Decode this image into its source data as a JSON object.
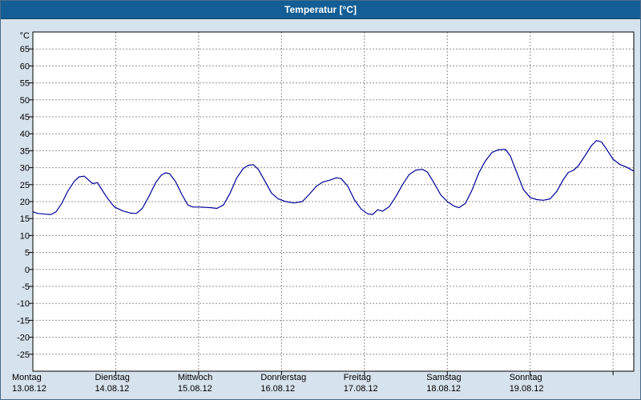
{
  "window": {
    "title": "Temperatur [°C]"
  },
  "chart_data": {
    "type": "line",
    "title": "Temperatur [°C]",
    "unit_label": "°C",
    "grid": true,
    "legend": "none",
    "ylim": [
      -30,
      70
    ],
    "y_ticks": [
      65,
      60,
      55,
      50,
      45,
      40,
      35,
      30,
      25,
      20,
      15,
      10,
      5,
      0,
      -5,
      -10,
      -15,
      -20,
      -25
    ],
    "xlim_days": [
      0,
      7.25
    ],
    "day_gridlines_t": [
      1,
      2,
      3,
      4,
      5,
      6,
      7
    ],
    "x_days": [
      {
        "name": "Montag",
        "date": "13.08.12",
        "t": 0
      },
      {
        "name": "Dienstag",
        "date": "14.08.12",
        "t": 1
      },
      {
        "name": "Mittwoch",
        "date": "15.08.12",
        "t": 2
      },
      {
        "name": "Donnerstag",
        "date": "16.08.12",
        "t": 3
      },
      {
        "name": "Freitag",
        "date": "17.08.12",
        "t": 4
      },
      {
        "name": "Samstag",
        "date": "18.08.12",
        "t": 5
      },
      {
        "name": "Sonntag",
        "date": "19.08.12",
        "t": 6
      }
    ],
    "colors": {
      "line": "#000099",
      "grid": "#909090",
      "plot_bg": "#ffffff",
      "frame": "#000000",
      "titlebar_bg": "#135e96",
      "page_bg": "#d6e2ec"
    },
    "series": [
      {
        "name": "Temperatur",
        "x_unit": "days_since_2012-08-13",
        "y_unit": "°C",
        "points": [
          [
            0.0,
            17.0
          ],
          [
            0.06,
            16.5
          ],
          [
            0.15,
            16.3
          ],
          [
            0.22,
            16.2
          ],
          [
            0.28,
            17.0
          ],
          [
            0.35,
            19.5
          ],
          [
            0.42,
            23.0
          ],
          [
            0.5,
            26.0
          ],
          [
            0.56,
            27.3
          ],
          [
            0.62,
            27.5
          ],
          [
            0.68,
            26.2
          ],
          [
            0.72,
            25.3
          ],
          [
            0.78,
            25.6
          ],
          [
            0.82,
            24.0
          ],
          [
            0.9,
            21.0
          ],
          [
            0.98,
            18.5
          ],
          [
            1.08,
            17.3
          ],
          [
            1.18,
            16.6
          ],
          [
            1.25,
            16.5
          ],
          [
            1.32,
            18.0
          ],
          [
            1.4,
            21.5
          ],
          [
            1.48,
            25.5
          ],
          [
            1.55,
            27.8
          ],
          [
            1.6,
            28.5
          ],
          [
            1.65,
            28.2
          ],
          [
            1.72,
            26.0
          ],
          [
            1.8,
            22.0
          ],
          [
            1.87,
            19.0
          ],
          [
            1.93,
            18.4
          ],
          [
            2.0,
            18.4
          ],
          [
            2.08,
            18.3
          ],
          [
            2.15,
            18.2
          ],
          [
            2.22,
            18.0
          ],
          [
            2.3,
            19.0
          ],
          [
            2.38,
            22.5
          ],
          [
            2.46,
            27.0
          ],
          [
            2.54,
            29.8
          ],
          [
            2.6,
            30.7
          ],
          [
            2.66,
            30.9
          ],
          [
            2.72,
            29.5
          ],
          [
            2.8,
            26.0
          ],
          [
            2.88,
            22.5
          ],
          [
            2.96,
            20.8
          ],
          [
            3.05,
            20.0
          ],
          [
            3.15,
            19.6
          ],
          [
            3.25,
            20.0
          ],
          [
            3.33,
            22.0
          ],
          [
            3.42,
            24.5
          ],
          [
            3.5,
            25.8
          ],
          [
            3.58,
            26.3
          ],
          [
            3.66,
            27.0
          ],
          [
            3.72,
            26.8
          ],
          [
            3.8,
            24.5
          ],
          [
            3.88,
            20.5
          ],
          [
            3.96,
            17.8
          ],
          [
            4.04,
            16.4
          ],
          [
            4.1,
            16.2
          ],
          [
            4.16,
            17.6
          ],
          [
            4.22,
            17.2
          ],
          [
            4.3,
            18.5
          ],
          [
            4.38,
            21.5
          ],
          [
            4.46,
            25.0
          ],
          [
            4.54,
            28.0
          ],
          [
            4.62,
            29.3
          ],
          [
            4.7,
            29.5
          ],
          [
            4.76,
            28.7
          ],
          [
            4.84,
            25.5
          ],
          [
            4.92,
            22.0
          ],
          [
            5.0,
            20.0
          ],
          [
            5.08,
            18.7
          ],
          [
            5.14,
            18.2
          ],
          [
            5.22,
            19.5
          ],
          [
            5.3,
            23.5
          ],
          [
            5.38,
            28.5
          ],
          [
            5.46,
            32.0
          ],
          [
            5.54,
            34.5
          ],
          [
            5.62,
            35.3
          ],
          [
            5.7,
            35.4
          ],
          [
            5.76,
            33.5
          ],
          [
            5.84,
            28.5
          ],
          [
            5.92,
            23.5
          ],
          [
            6.0,
            21.2
          ],
          [
            6.08,
            20.6
          ],
          [
            6.16,
            20.4
          ],
          [
            6.24,
            20.8
          ],
          [
            6.32,
            23.0
          ],
          [
            6.4,
            26.5
          ],
          [
            6.46,
            28.6
          ],
          [
            6.52,
            29.2
          ],
          [
            6.58,
            30.5
          ],
          [
            6.66,
            33.5
          ],
          [
            6.74,
            36.5
          ],
          [
            6.8,
            38.0
          ],
          [
            6.86,
            37.6
          ],
          [
            6.92,
            35.5
          ],
          [
            7.0,
            32.5
          ],
          [
            7.08,
            31.0
          ],
          [
            7.16,
            30.2
          ],
          [
            7.25,
            29.0
          ]
        ]
      }
    ]
  }
}
